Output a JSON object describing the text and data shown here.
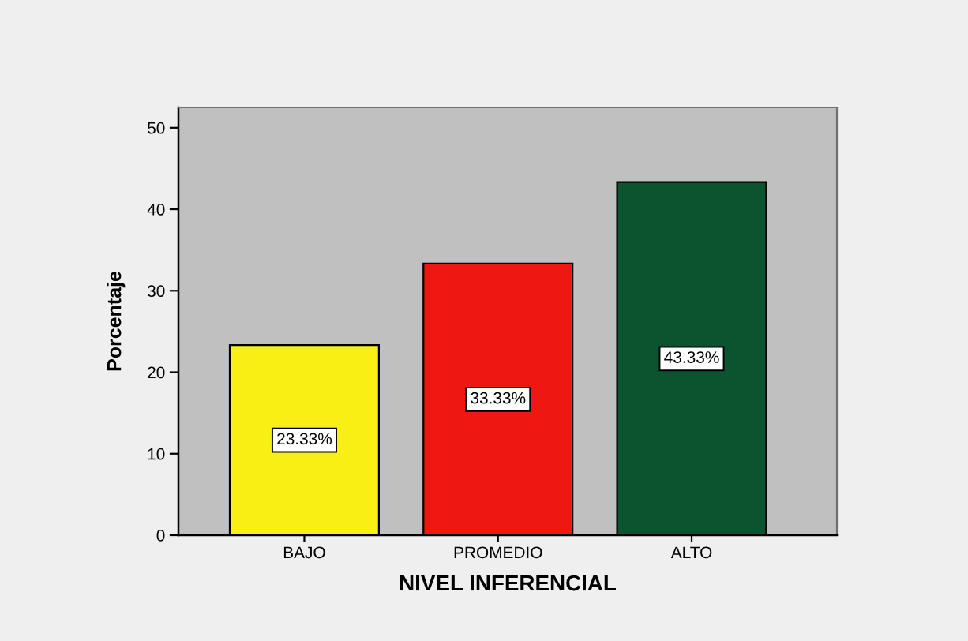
{
  "chart_data": {
    "type": "bar",
    "xlabel": "NIVEL INFERENCIAL",
    "ylabel": "Porcentaje",
    "categories": [
      "BAJO",
      "PROMEDIO",
      "ALTO"
    ],
    "values": [
      23.33,
      33.33,
      43.33
    ],
    "colors": [
      "#f8ef15",
      "#ef1712",
      "#0c5430"
    ],
    "value_labels": [
      "23.33%",
      "33.33%",
      "43.33%"
    ],
    "ylim": [
      0,
      52.5
    ],
    "yticks": [
      0,
      10,
      20,
      30,
      40,
      50
    ],
    "grid": false,
    "legend": false
  }
}
